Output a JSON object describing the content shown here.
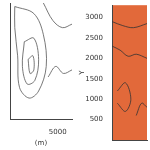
{
  "chart_data": [
    {
      "type": "contour",
      "x_label": "(m)",
      "xlim": [
        0,
        6500
      ],
      "xticks": [
        5000
      ],
      "ylim": [
        0,
        3300
      ],
      "tick_labels": "x",
      "grid": false,
      "series": [
        {
          "color": "#555555",
          "x": [
            500,
            2500,
            3500,
            3800,
            3000,
            2000,
            1000,
            800,
            500,
            500
          ],
          "values": [
            3200,
            3000,
            2400,
            1500,
            800,
            600,
            900,
            1800,
            2600,
            3200
          ]
        },
        {
          "color": "#555555",
          "x": [
            1500,
            2500,
            3000,
            2600,
            1800,
            1300,
            1500
          ],
          "values": [
            2200,
            2300,
            1700,
            1100,
            1000,
            1500,
            2200
          ]
        },
        {
          "color": "#555555",
          "x": [
            1900,
            2400,
            2500,
            2100,
            1900
          ],
          "values": [
            1700,
            1800,
            1400,
            1300,
            1700
          ]
        },
        {
          "color": "#555555",
          "x": [
            3500,
            4500,
            5500,
            6500
          ],
          "values": [
            3300,
            2800,
            2600,
            2700
          ]
        },
        {
          "color": "#555555",
          "x": [
            4000,
            4800,
            5600,
            6500
          ],
          "values": [
            1200,
            1500,
            1300,
            1400
          ]
        }
      ]
    },
    {
      "type": "contour",
      "y_label": "Y",
      "xlim": [
        0,
        6500
      ],
      "ylim": [
        0,
        3300
      ],
      "yticks": [
        500,
        1000,
        1500,
        2000,
        2500,
        3000
      ],
      "tick_labels": "y",
      "grid": false,
      "color": "#e2693a",
      "series": [
        {
          "color": "#333333",
          "x": [
            0,
            1500,
            3000,
            4500,
            6500
          ],
          "values": [
            2300,
            2200,
            2050,
            2100,
            2000
          ]
        },
        {
          "color": "#333333",
          "x": [
            0,
            2000,
            4000,
            6500
          ],
          "values": [
            2900,
            2800,
            2750,
            2850
          ]
        },
        {
          "color": "#333333",
          "x": [
            1000,
            2500,
            3500,
            2500,
            1000
          ],
          "values": [
            1200,
            1400,
            1000,
            700,
            900
          ]
        },
        {
          "color": "#333333",
          "x": [
            4500,
            5500,
            6500
          ],
          "values": [
            600,
            900,
            800
          ]
        }
      ]
    }
  ]
}
